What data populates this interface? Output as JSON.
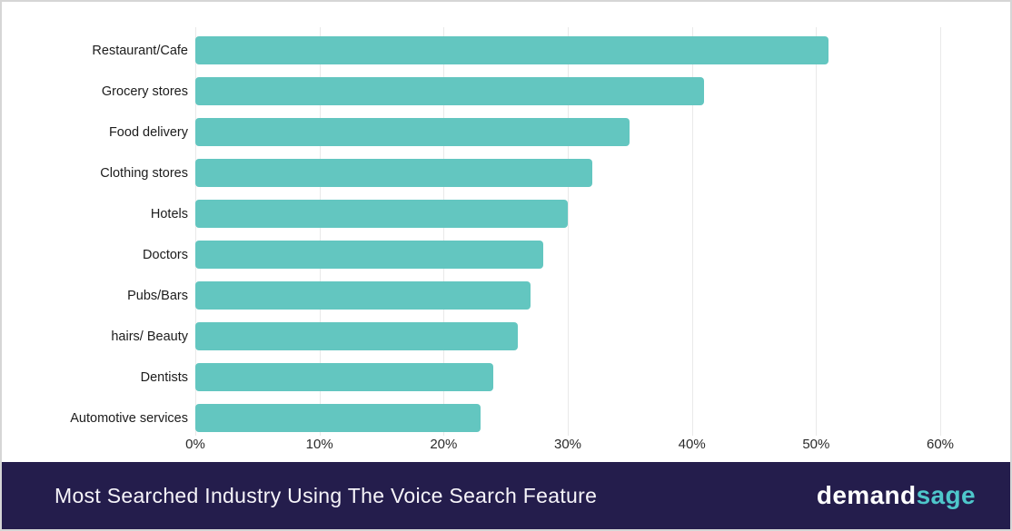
{
  "chart_data": {
    "type": "bar",
    "orientation": "horizontal",
    "title": "Most Searched Industry Using The Voice Search Feature",
    "categories": [
      "Restaurant/Cafe",
      "Grocery stores",
      "Food delivery",
      "Clothing stores",
      "Hotels",
      "Doctors",
      "Pubs/Bars",
      "hairs/ Beauty",
      "Dentists",
      "Automotive services"
    ],
    "values": [
      51,
      41,
      35,
      32,
      30,
      28,
      27,
      26,
      24,
      23
    ],
    "unit": "%",
    "x_ticks": [
      "0%",
      "10%",
      "20%",
      "30%",
      "40%",
      "50%",
      "60%"
    ],
    "xlim": [
      0,
      60
    ],
    "xlabel": "",
    "ylabel": "",
    "grid": "vertical-light",
    "legend_position": "none",
    "bar_color": "#63c6c0",
    "gridline_color": "#e9e9e9"
  },
  "footer": {
    "title": "Most Searched Industry Using The Voice Search Feature",
    "background_color": "#241d4c",
    "brand": {
      "demand": "demand",
      "sage": "sage",
      "demand_color": "#ffffff",
      "sage_color": "#4ec7cb"
    }
  }
}
